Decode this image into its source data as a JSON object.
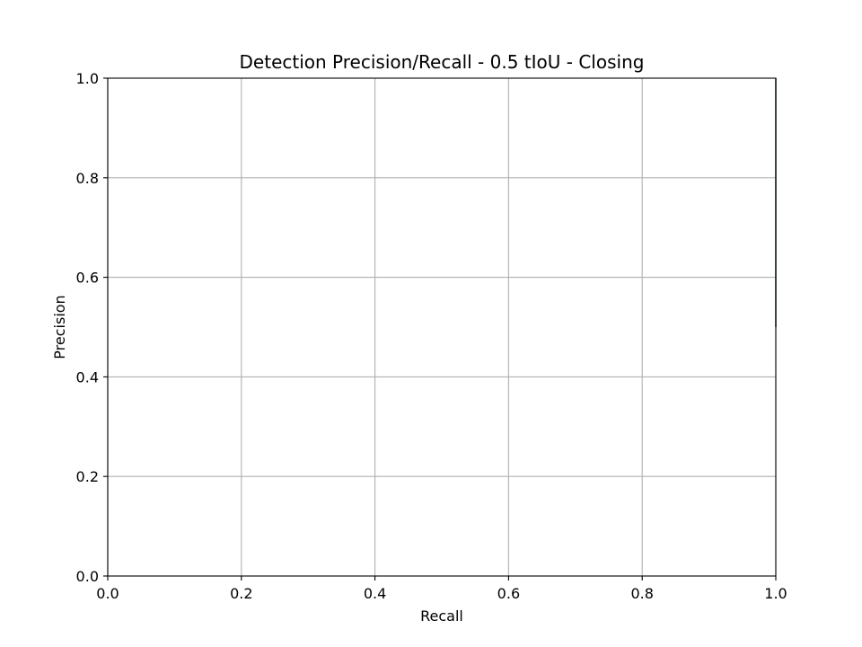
{
  "chart_data": {
    "type": "line",
    "title": "Detection Precision/Recall - 0.5 tIoU - Closing",
    "xlabel": "Recall",
    "ylabel": "Precision",
    "xlim": [
      0.0,
      1.0
    ],
    "ylim": [
      0.0,
      1.0
    ],
    "xticks": [
      "0.0",
      "0.2",
      "0.4",
      "0.6",
      "0.8",
      "1.0"
    ],
    "yticks": [
      "0.0",
      "0.2",
      "0.4",
      "0.6",
      "0.8",
      "1.0"
    ],
    "grid": true,
    "series": [
      {
        "color": "#0b2f2f",
        "x": [
          1.0,
          1.0
        ],
        "y": [
          0.5,
          1.0
        ]
      }
    ]
  }
}
